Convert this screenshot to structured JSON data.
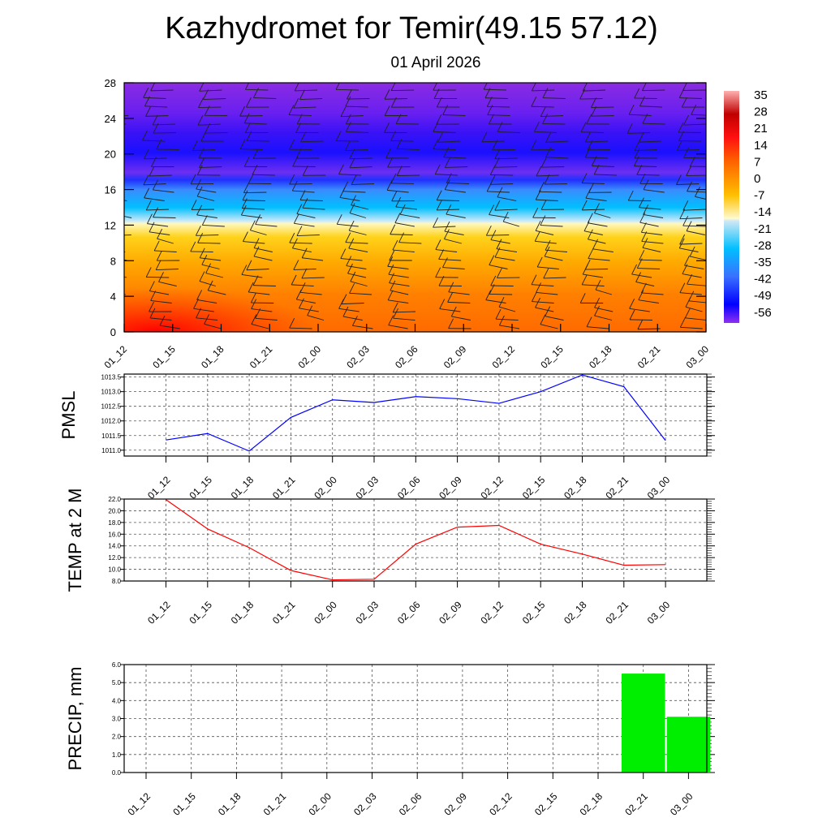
{
  "title": "Kazhydromet for Temir(49.15 57.12)",
  "subtitle": "01 April 2026",
  "times": [
    "01_12",
    "01_15",
    "01_18",
    "01_21",
    "02_00",
    "02_03",
    "02_06",
    "02_09",
    "02_12",
    "02_15",
    "02_18",
    "02_21",
    "03_00"
  ],
  "chart_data": [
    {
      "type": "heatmap",
      "name": "Temperature cross-section with wind barbs",
      "x": [
        "01_12",
        "01_15",
        "01_18",
        "01_21",
        "02_00",
        "02_03",
        "02_06",
        "02_09",
        "02_12",
        "02_15",
        "02_18",
        "02_21",
        "03_00"
      ],
      "ylim": [
        0,
        28
      ],
      "yticks": [
        "0",
        "4",
        "8",
        "12",
        "16",
        "20",
        "24",
        "28"
      ],
      "colorbar_labels": [
        "35",
        "28",
        "21",
        "14",
        "7",
        "0",
        "-7",
        "-14",
        "-21",
        "-28",
        "-35",
        "-42",
        "-49",
        "-56"
      ],
      "colors": {
        "warm": "#ff2000",
        "tropopause": "#fffbd0",
        "cold": "#1a10ff",
        "top": "#8a2be2"
      }
    },
    {
      "type": "line",
      "ylabel": "PMSL",
      "ylim": [
        1010.8,
        1013.6
      ],
      "yticks": [
        "1013.5",
        "1013.0",
        "1012.5",
        "1012.0",
        "1011.5",
        "1011.0"
      ],
      "x": [
        "01_12",
        "01_15",
        "01_18",
        "01_21",
        "02_00",
        "02_03",
        "02_06",
        "02_09",
        "02_12",
        "02_15",
        "02_18",
        "02_21",
        "03_00"
      ],
      "values": [
        1011.35,
        1011.57,
        1010.97,
        1012.12,
        1012.72,
        1012.63,
        1012.83,
        1012.76,
        1012.6,
        1013.0,
        1013.57,
        1013.17,
        1011.33
      ],
      "color": "#0000ff"
    },
    {
      "type": "line",
      "ylabel": "TEMP at 2 M",
      "ylim": [
        8,
        22
      ],
      "yticks": [
        "22.0",
        "20.0",
        "18.0",
        "16.0",
        "14.0",
        "12.0",
        "10.0",
        "8.0"
      ],
      "x": [
        "01_12",
        "01_15",
        "01_18",
        "01_21",
        "02_00",
        "02_03",
        "02_06",
        "02_09",
        "02_12",
        "02_15",
        "02_18",
        "02_21",
        "03_00"
      ],
      "values": [
        21.9,
        16.9,
        13.7,
        9.8,
        8.2,
        8.3,
        14.3,
        17.2,
        17.5,
        14.3,
        12.6,
        10.7,
        10.8
      ],
      "color": "#ff0000"
    },
    {
      "type": "bar",
      "ylabel": "PRECIP, mm",
      "ylim": [
        0,
        6
      ],
      "yticks": [
        "6.0",
        "5.0",
        "4.0",
        "3.0",
        "2.0",
        "1.0",
        "0.0"
      ],
      "categories": [
        "01_12",
        "01_15",
        "01_18",
        "01_21",
        "02_00",
        "02_03",
        "02_06",
        "02_09",
        "02_12",
        "02_15",
        "02_18",
        "02_21",
        "03_00"
      ],
      "values": [
        0,
        0,
        0,
        0,
        0,
        0,
        0,
        0,
        0,
        0,
        0,
        5.5,
        3.1
      ],
      "color": "#00ee00"
    }
  ]
}
